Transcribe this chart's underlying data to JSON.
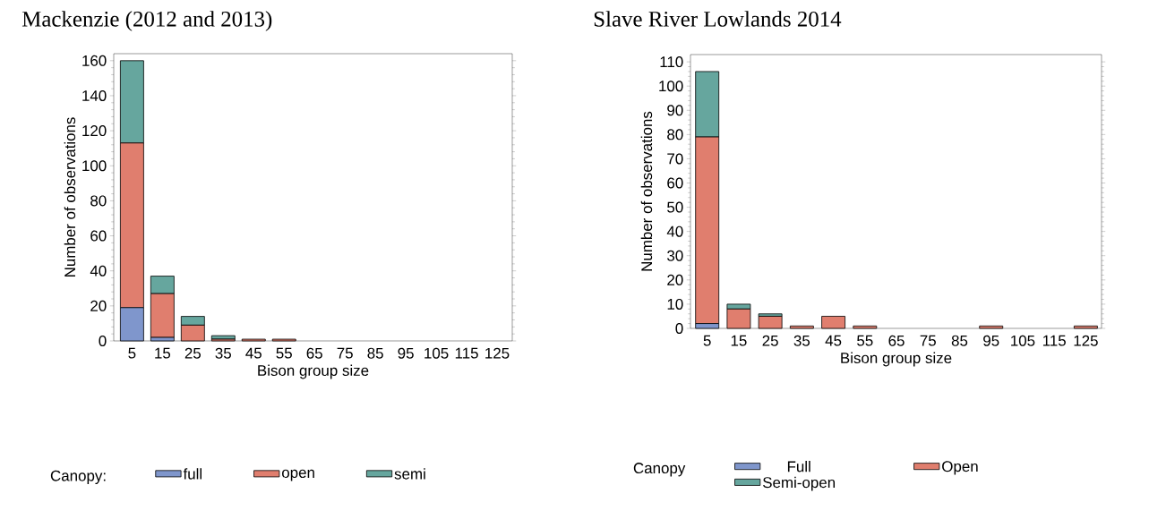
{
  "chart_data": [
    {
      "type": "bar",
      "stacked": true,
      "title": "Mackenzie (2012 and 2013)",
      "xlabel": "Bison group size",
      "ylabel": "Number of observations",
      "legend_title": "Canopy:",
      "legend": "bottom",
      "categories": [
        "5",
        "15",
        "25",
        "35",
        "45",
        "55",
        "65",
        "75",
        "85",
        "95",
        "105",
        "115",
        "125"
      ],
      "series": [
        {
          "name": "full",
          "color": "#7f96cc",
          "values": [
            19,
            2,
            0,
            0,
            0,
            0,
            0,
            0,
            0,
            0,
            0,
            0,
            0
          ]
        },
        {
          "name": "open",
          "color": "#e07e6e",
          "values": [
            94,
            25,
            9,
            1,
            1,
            1,
            0,
            0,
            0,
            0,
            0,
            0,
            0
          ]
        },
        {
          "name": "semi",
          "color": "#66a69e",
          "values": [
            47,
            10,
            5,
            2,
            0,
            0,
            0,
            0,
            0,
            0,
            0,
            0,
            0
          ]
        }
      ],
      "ylim": [
        0,
        164
      ],
      "yticks": [
        0,
        20,
        40,
        60,
        80,
        100,
        120,
        140,
        160
      ]
    },
    {
      "type": "bar",
      "stacked": true,
      "title": "Slave River Lowlands 2014",
      "xlabel": "Bison group size",
      "ylabel": "Number of observations",
      "legend_title": "Canopy",
      "legend": "bottom",
      "categories": [
        "5",
        "15",
        "25",
        "35",
        "45",
        "55",
        "65",
        "75",
        "85",
        "95",
        "105",
        "115",
        "125"
      ],
      "series": [
        {
          "name": "Full",
          "color": "#7f96cc",
          "values": [
            2,
            0,
            0,
            0,
            0,
            0,
            0,
            0,
            0,
            0,
            0,
            0,
            0
          ]
        },
        {
          "name": "Open",
          "color": "#e07e6e",
          "values": [
            77,
            8,
            5,
            1,
            5,
            1,
            0,
            0,
            0,
            1,
            0,
            0,
            1
          ]
        },
        {
          "name": "Semi-open",
          "color": "#66a69e",
          "values": [
            27,
            2,
            1,
            0,
            0,
            0,
            0,
            0,
            0,
            0,
            0,
            0,
            0
          ]
        }
      ],
      "ylim": [
        0,
        113
      ],
      "yticks": [
        0,
        10,
        20,
        30,
        40,
        50,
        60,
        70,
        80,
        90,
        100,
        110
      ]
    }
  ]
}
